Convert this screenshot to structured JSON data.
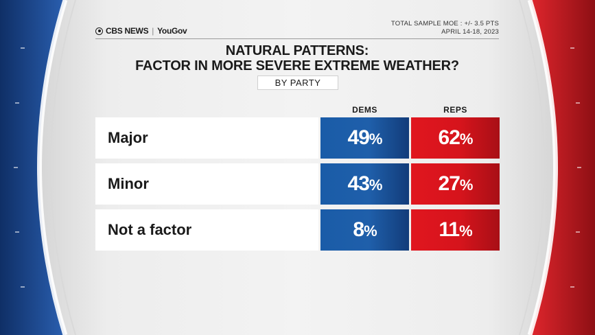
{
  "header": {
    "brand_cbs": "CBS NEWS",
    "brand_yougov": "YouGov",
    "moe": "TOTAL SAMPLE MOE : +/- 3.5 PTS",
    "dates": "APRIL 14-18, 2023"
  },
  "chart_data": {
    "type": "table",
    "title_line1": "NATURAL PATTERNS:",
    "title_line2": "FACTOR IN MORE SEVERE EXTREME WEATHER?",
    "subtitle": "BY PARTY",
    "columns": [
      "DEMS",
      "REPS"
    ],
    "categories": [
      "Major",
      "Minor",
      "Not a factor"
    ],
    "series": [
      {
        "name": "DEMS",
        "values": [
          49,
          43,
          8
        ]
      },
      {
        "name": "REPS",
        "values": [
          62,
          27,
          11
        ]
      }
    ],
    "unit": "%"
  },
  "colors": {
    "dems": "#1f5faa",
    "reps": "#d6141c",
    "frame_blue": "#17448a",
    "frame_red": "#c81a22"
  }
}
